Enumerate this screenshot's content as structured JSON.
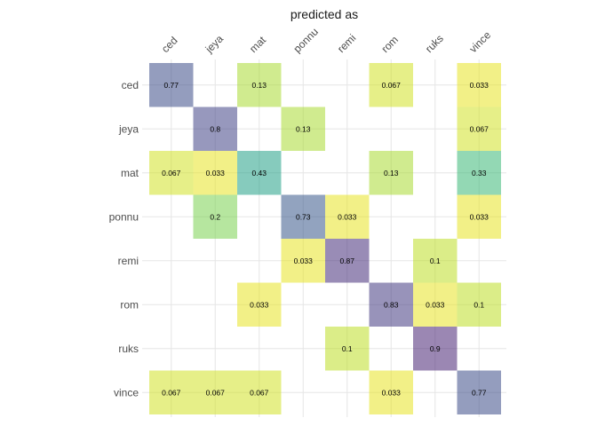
{
  "chart_data": {
    "type": "heatmap",
    "title": "predicted as",
    "columns": [
      "ced",
      "jeya",
      "mat",
      "ponnu",
      "remi",
      "rom",
      "ruks",
      "vince"
    ],
    "rows": [
      "ced",
      "jeya",
      "mat",
      "ponnu",
      "remi",
      "rom",
      "ruks",
      "vince"
    ],
    "cells": [
      {
        "row": "ced",
        "col": "ced",
        "value": 0.77,
        "label": "0.77"
      },
      {
        "row": "ced",
        "col": "mat",
        "value": 0.13,
        "label": "0.13"
      },
      {
        "row": "ced",
        "col": "rom",
        "value": 0.067,
        "label": "0.067"
      },
      {
        "row": "ced",
        "col": "vince",
        "value": 0.033,
        "label": "0.033"
      },
      {
        "row": "jeya",
        "col": "jeya",
        "value": 0.8,
        "label": "0.8"
      },
      {
        "row": "jeya",
        "col": "ponnu",
        "value": 0.13,
        "label": "0.13"
      },
      {
        "row": "jeya",
        "col": "vince",
        "value": 0.067,
        "label": "0.067"
      },
      {
        "row": "mat",
        "col": "ced",
        "value": 0.067,
        "label": "0.067"
      },
      {
        "row": "mat",
        "col": "jeya",
        "value": 0.033,
        "label": "0.033"
      },
      {
        "row": "mat",
        "col": "mat",
        "value": 0.43,
        "label": "0.43"
      },
      {
        "row": "mat",
        "col": "rom",
        "value": 0.13,
        "label": "0.13"
      },
      {
        "row": "mat",
        "col": "vince",
        "value": 0.33,
        "label": "0.33"
      },
      {
        "row": "ponnu",
        "col": "jeya",
        "value": 0.2,
        "label": "0.2"
      },
      {
        "row": "ponnu",
        "col": "ponnu",
        "value": 0.73,
        "label": "0.73"
      },
      {
        "row": "ponnu",
        "col": "remi",
        "value": 0.033,
        "label": "0.033"
      },
      {
        "row": "ponnu",
        "col": "vince",
        "value": 0.033,
        "label": "0.033"
      },
      {
        "row": "remi",
        "col": "ponnu",
        "value": 0.033,
        "label": "0.033"
      },
      {
        "row": "remi",
        "col": "remi",
        "value": 0.87,
        "label": "0.87"
      },
      {
        "row": "remi",
        "col": "ruks",
        "value": 0.1,
        "label": "0.1"
      },
      {
        "row": "rom",
        "col": "mat",
        "value": 0.033,
        "label": "0.033"
      },
      {
        "row": "rom",
        "col": "rom",
        "value": 0.83,
        "label": "0.83"
      },
      {
        "row": "rom",
        "col": "ruks",
        "value": 0.033,
        "label": "0.033"
      },
      {
        "row": "rom",
        "col": "vince",
        "value": 0.1,
        "label": "0.1"
      },
      {
        "row": "ruks",
        "col": "remi",
        "value": 0.1,
        "label": "0.1"
      },
      {
        "row": "ruks",
        "col": "ruks",
        "value": 0.9,
        "label": "0.9"
      },
      {
        "row": "vince",
        "col": "ced",
        "value": 0.067,
        "label": "0.067"
      },
      {
        "row": "vince",
        "col": "jeya",
        "value": 0.067,
        "label": "0.067"
      },
      {
        "row": "vince",
        "col": "mat",
        "value": 0.067,
        "label": "0.067"
      },
      {
        "row": "vince",
        "col": "rom",
        "value": 0.033,
        "label": "0.033"
      },
      {
        "row": "vince",
        "col": "vince",
        "value": 0.77,
        "label": "0.77"
      }
    ],
    "color_scale": "viridis",
    "color_opacity": 0.55,
    "grid": true,
    "legend": "none"
  }
}
